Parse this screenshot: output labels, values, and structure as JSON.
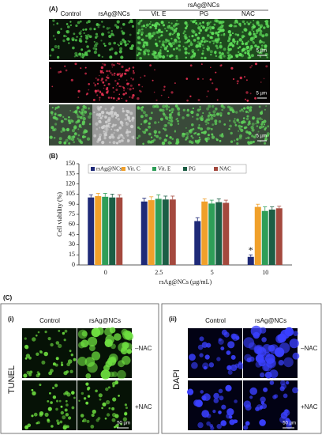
{
  "panel_a": {
    "label": "(A)",
    "group": "rsAg@NCs",
    "columns": [
      "Control",
      "rsAg@NCs",
      "Vit. E",
      "PG",
      "NAC"
    ],
    "scale_bars": [
      "5 µm",
      "5 µm",
      "5 µm"
    ]
  },
  "chart_data": {
    "type": "bar",
    "label": "(B)",
    "categories": [
      "0",
      "2.5",
      "5",
      "10"
    ],
    "series": [
      {
        "name": "rsAg@NCs",
        "color": "#1f2a78",
        "values": [
          100,
          94,
          65,
          12
        ],
        "errors": [
          4,
          5,
          5,
          3
        ]
      },
      {
        "name": "Vit. C",
        "color": "#f0a02a",
        "values": [
          102,
          96,
          94,
          86
        ],
        "errors": [
          4,
          5,
          4,
          4
        ]
      },
      {
        "name": "Vit. E",
        "color": "#2e9e58",
        "values": [
          101,
          98,
          91,
          80
        ],
        "errors": [
          5,
          6,
          5,
          6
        ]
      },
      {
        "name": "PG",
        "color": "#1c5e45",
        "values": [
          100,
          97,
          93,
          82
        ],
        "errors": [
          5,
          5,
          5,
          4
        ]
      },
      {
        "name": "NAC",
        "color": "#a4493e",
        "values": [
          100,
          97,
          92,
          84
        ],
        "errors": [
          4,
          5,
          4,
          3
        ]
      }
    ],
    "ylabel": "Cell viability (%)",
    "xlabel": "rsAg@NCs (µg/mL)",
    "ylim": [
      0,
      150
    ],
    "yticks": [
      0,
      15,
      30,
      45,
      60,
      75,
      90,
      105,
      120,
      135,
      150
    ],
    "annotation": "*"
  },
  "panel_c": {
    "label": "(C)",
    "left": {
      "label": "(i)",
      "stain": "TUNEL",
      "columns": [
        "Control",
        "rsAg@NCs"
      ],
      "rows": [
        "–NAC",
        "+NAC"
      ],
      "scale_bar": "50 µm"
    },
    "right": {
      "label": "(ii)",
      "stain": "DAPI",
      "columns": [
        "Control",
        "rsAg@NCs"
      ],
      "rows": [
        "–NAC",
        "+NAC"
      ],
      "scale_bar": "50 µm"
    }
  }
}
